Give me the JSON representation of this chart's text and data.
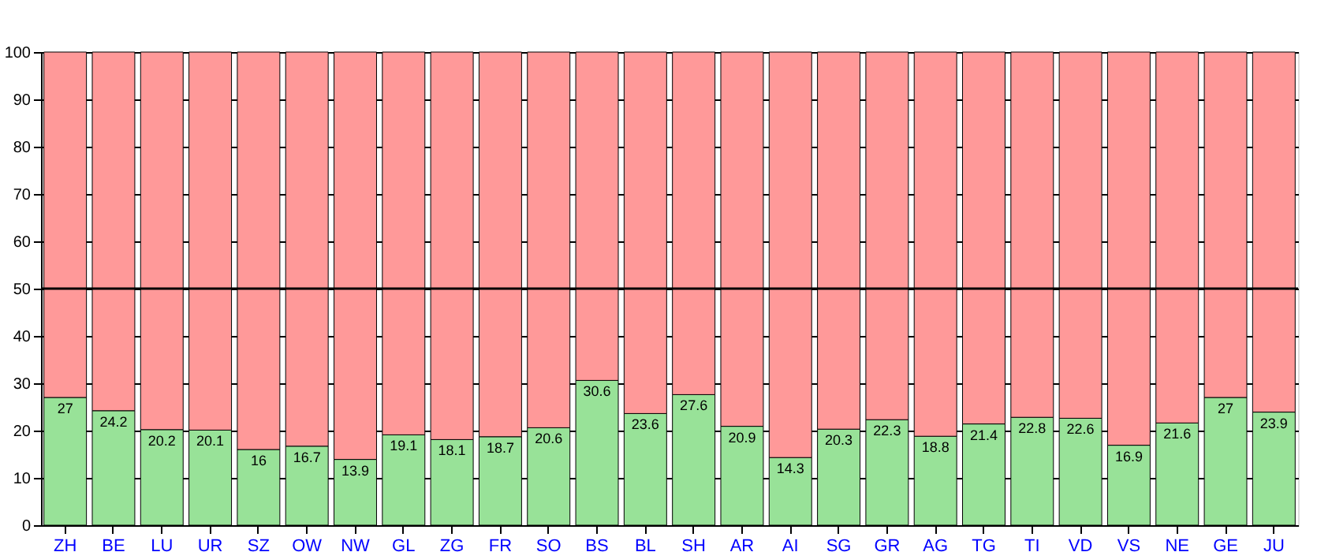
{
  "chart_data": {
    "type": "bar",
    "stacked": true,
    "categories": [
      "ZH",
      "BE",
      "LU",
      "UR",
      "SZ",
      "OW",
      "NW",
      "GL",
      "ZG",
      "FR",
      "SO",
      "BS",
      "BL",
      "SH",
      "AR",
      "AI",
      "SG",
      "GR",
      "AG",
      "TG",
      "TI",
      "VD",
      "VS",
      "NE",
      "GE",
      "JU"
    ],
    "series": [
      {
        "color": "#98e298",
        "values": [
          27,
          24.2,
          20.2,
          20.1,
          16,
          16.7,
          13.9,
          19.1,
          18.1,
          18.7,
          20.6,
          30.6,
          23.6,
          27.6,
          20.9,
          14.3,
          20.3,
          22.3,
          18.8,
          21.4,
          22.8,
          22.6,
          16.9,
          21.6,
          27,
          23.9
        ],
        "value_labels": [
          "27",
          "24.2",
          "20.2",
          "20.1",
          "16",
          "16.7",
          "13.9",
          "19.1",
          "18.1",
          "18.7",
          "20.6",
          "30.6",
          "23.6",
          "27.6",
          "20.9",
          "14.3",
          "20.3",
          "22.3",
          "18.8",
          "21.4",
          "22.8",
          "22.6",
          "16.9",
          "21.6",
          "27",
          "23.9"
        ]
      },
      {
        "color": "#ff9999",
        "values": [
          73,
          75.8,
          79.8,
          79.9,
          84,
          83.3,
          86.1,
          80.9,
          81.9,
          81.3,
          79.4,
          69.4,
          76.4,
          72.4,
          79.1,
          85.7,
          79.7,
          77.7,
          81.2,
          78.6,
          77.2,
          77.4,
          83.1,
          78.4,
          73,
          76.1
        ]
      }
    ],
    "ylim": [
      0,
      100
    ],
    "yticks": [
      0,
      10,
      20,
      30,
      40,
      50,
      60,
      70,
      80,
      90,
      100
    ],
    "grid": "y",
    "ref_lines": [
      {
        "axis": "y",
        "value": 50,
        "color": "#000000"
      }
    ]
  }
}
